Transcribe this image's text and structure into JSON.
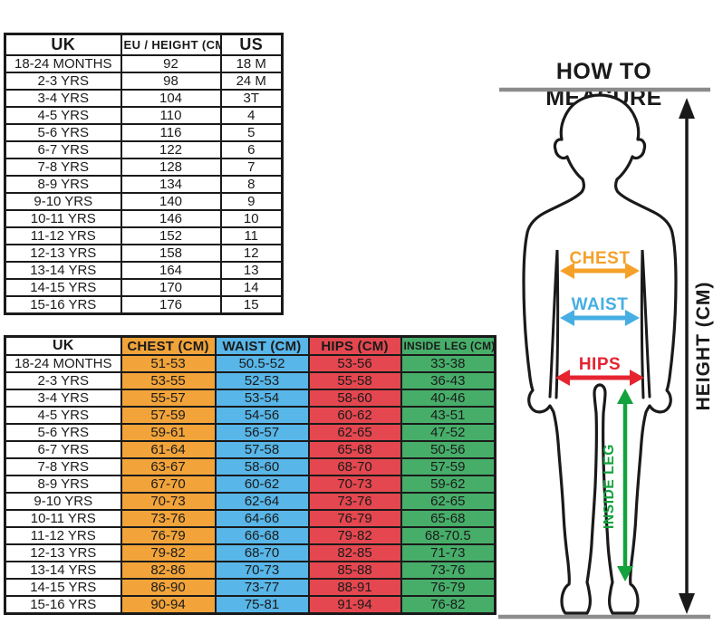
{
  "chart_data": [
    {
      "type": "table",
      "name": "size_conversion",
      "columns": [
        "UK",
        "EU / HEIGHT (CM)",
        "US"
      ],
      "rows": [
        [
          "18-24 MONTHS",
          "92",
          "18 M"
        ],
        [
          "2-3 YRS",
          "98",
          "24 M"
        ],
        [
          "3-4 YRS",
          "104",
          "3T"
        ],
        [
          "4-5 YRS",
          "110",
          "4"
        ],
        [
          "5-6 YRS",
          "116",
          "5"
        ],
        [
          "6-7 YRS",
          "122",
          "6"
        ],
        [
          "7-8 YRS",
          "128",
          "7"
        ],
        [
          "8-9 YRS",
          "134",
          "8"
        ],
        [
          "9-10 YRS",
          "140",
          "9"
        ],
        [
          "10-11 YRS",
          "146",
          "10"
        ],
        [
          "11-12 YRS",
          "152",
          "11"
        ],
        [
          "12-13 YRS",
          "158",
          "12"
        ],
        [
          "13-14 YRS",
          "164",
          "13"
        ],
        [
          "14-15 YRS",
          "170",
          "14"
        ],
        [
          "15-16 YRS",
          "176",
          "15"
        ]
      ]
    },
    {
      "type": "table",
      "name": "body_measurements",
      "columns": [
        "UK",
        "CHEST (CM)",
        "WAIST (CM)",
        "HIPS (CM)",
        "INSIDE LEG (CM)"
      ],
      "column_colors": [
        "#FFFFFF",
        "#F2A43A",
        "#58B6E8",
        "#E4474F",
        "#47AE6A"
      ],
      "rows": [
        [
          "18-24 MONTHS",
          "51-53",
          "50.5-52",
          "53-56",
          "33-38"
        ],
        [
          "2-3 YRS",
          "53-55",
          "52-53",
          "55-58",
          "36-43"
        ],
        [
          "3-4 YRS",
          "55-57",
          "53-54",
          "58-60",
          "40-46"
        ],
        [
          "4-5 YRS",
          "57-59",
          "54-56",
          "60-62",
          "43-51"
        ],
        [
          "5-6 YRS",
          "59-61",
          "56-57",
          "62-65",
          "47-52"
        ],
        [
          "6-7 YRS",
          "61-64",
          "57-58",
          "65-68",
          "50-56"
        ],
        [
          "7-8 YRS",
          "63-67",
          "58-60",
          "68-70",
          "57-59"
        ],
        [
          "8-9 YRS",
          "67-70",
          "60-62",
          "70-73",
          "59-62"
        ],
        [
          "9-10 YRS",
          "70-73",
          "62-64",
          "73-76",
          "62-65"
        ],
        [
          "10-11 YRS",
          "73-76",
          "64-66",
          "76-79",
          "65-68"
        ],
        [
          "11-12 YRS",
          "76-79",
          "66-68",
          "79-82",
          "68-70.5"
        ],
        [
          "12-13 YRS",
          "79-82",
          "68-70",
          "82-85",
          "71-73"
        ],
        [
          "13-14 YRS",
          "82-86",
          "70-73",
          "85-88",
          "73-76"
        ],
        [
          "14-15 YRS",
          "86-90",
          "73-77",
          "88-91",
          "76-79"
        ],
        [
          "15-16 YRS",
          "90-94",
          "75-81",
          "91-94",
          "76-82"
        ]
      ]
    }
  ],
  "how_to_measure": {
    "title": "HOW TO MEASURE",
    "labels": {
      "chest": "CHEST",
      "waist": "WAIST",
      "hips": "HIPS",
      "inside_leg": "INSIDE LEG",
      "height": "HEIGHT (CM)"
    },
    "colors": {
      "chest": "#F5A028",
      "waist": "#46AEE2",
      "hips": "#E62430",
      "inside_leg": "#14A23E",
      "height": "#1A1A1A",
      "guide_line": "#8C8C8C",
      "outline": "#1A1A1A"
    }
  }
}
